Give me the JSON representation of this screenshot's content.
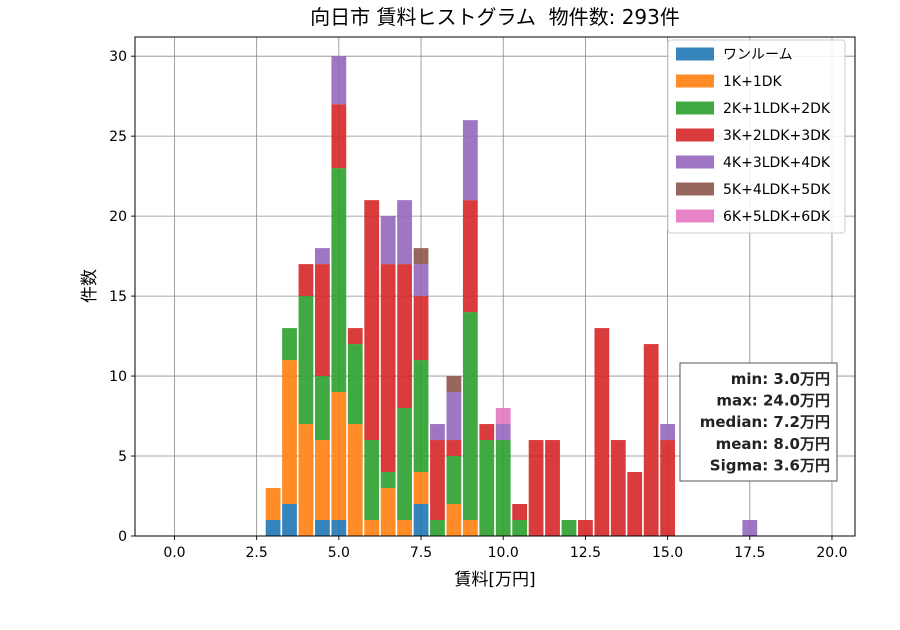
{
  "chart_data": {
    "type": "bar",
    "stacked": true,
    "title": "向日市 賃料ヒストグラム  物件数: 293件",
    "xlabel": "賃料[万円]",
    "ylabel": "件数",
    "xlim": [
      -1.2,
      20.7
    ],
    "ylim": [
      0,
      31.2
    ],
    "xticks": [
      0,
      2.5,
      5,
      7.5,
      10,
      12.5,
      15,
      17.5,
      20
    ],
    "xtick_labels": [
      "0.0",
      "2.5",
      "5.0",
      "7.5",
      "10.0",
      "12.5",
      "15.0",
      "17.5",
      "20.0"
    ],
    "yticks": [
      0,
      5,
      10,
      15,
      20,
      25,
      30
    ],
    "ytick_labels": [
      "0",
      "5",
      "10",
      "15",
      "20",
      "25",
      "30"
    ],
    "grid": true,
    "legend_position": "upper right",
    "bin_width": 0.5,
    "x": [
      3.0,
      3.5,
      4.0,
      4.5,
      5.0,
      5.5,
      6.0,
      6.5,
      7.0,
      7.5,
      8.0,
      8.5,
      9.0,
      9.5,
      10.0,
      10.5,
      11.0,
      11.5,
      12.0,
      12.5,
      13.0,
      13.5,
      14.0,
      14.5,
      15.0,
      15.5,
      16.0,
      16.5,
      17.0,
      17.5
    ],
    "series": [
      {
        "name": "ワンルーム",
        "color": "#1f77b4",
        "values": [
          1,
          2,
          0,
          1,
          1,
          0,
          0,
          0,
          0,
          2,
          0,
          0,
          0,
          0,
          0,
          0,
          0,
          0,
          0,
          0,
          0,
          0,
          0,
          0,
          0,
          0,
          0,
          0,
          0,
          0
        ]
      },
      {
        "name": "1K+1DK",
        "color": "#ff7f0e",
        "values": [
          2,
          9,
          7,
          5,
          8,
          7,
          1,
          3,
          1,
          2,
          0,
          2,
          1,
          0,
          0,
          0,
          0,
          0,
          0,
          0,
          0,
          0,
          0,
          0,
          0,
          0,
          0,
          0,
          0,
          0
        ]
      },
      {
        "name": "2K+1LDK+2DK",
        "color": "#2ca02c",
        "values": [
          0,
          2,
          8,
          4,
          14,
          5,
          5,
          1,
          7,
          7,
          1,
          3,
          13,
          6,
          6,
          1,
          0,
          0,
          1,
          0,
          0,
          0,
          0,
          0,
          0,
          0,
          0,
          0,
          0,
          0
        ]
      },
      {
        "name": "3K+2LDK+3DK",
        "color": "#d62728",
        "values": [
          0,
          0,
          2,
          7,
          4,
          1,
          15,
          13,
          9,
          4,
          5,
          1,
          7,
          1,
          0,
          1,
          6,
          6,
          0,
          1,
          13,
          6,
          4,
          12,
          6,
          0,
          0,
          0,
          0,
          0
        ]
      },
      {
        "name": "4K+3LDK+4DK",
        "color": "#9467bd",
        "values": [
          0,
          0,
          0,
          1,
          3,
          0,
          0,
          3,
          4,
          2,
          1,
          3,
          5,
          0,
          1,
          0,
          0,
          0,
          0,
          0,
          0,
          0,
          0,
          0,
          1,
          0,
          0,
          0,
          0,
          1
        ]
      },
      {
        "name": "5K+4LDK+5DK",
        "color": "#8c564b",
        "values": [
          0,
          0,
          0,
          0,
          0,
          0,
          0,
          0,
          0,
          1,
          0,
          1,
          0,
          0,
          0,
          0,
          0,
          0,
          0,
          0,
          0,
          0,
          0,
          0,
          0,
          0,
          0,
          0,
          0,
          0
        ]
      },
      {
        "name": "6K+5LDK+6DK",
        "color": "#e377c2",
        "values": [
          0,
          0,
          0,
          0,
          0,
          0,
          0,
          0,
          0,
          0,
          0,
          0,
          0,
          0,
          1,
          0,
          0,
          0,
          0,
          0,
          0,
          0,
          0,
          0,
          0,
          0,
          0,
          0,
          0,
          0
        ]
      }
    ],
    "annotations": [
      "min: 3.0万円",
      "max: 24.0万円",
      "median: 7.2万円",
      "mean: 8.0万円",
      "Sigma: 3.6万円"
    ]
  }
}
